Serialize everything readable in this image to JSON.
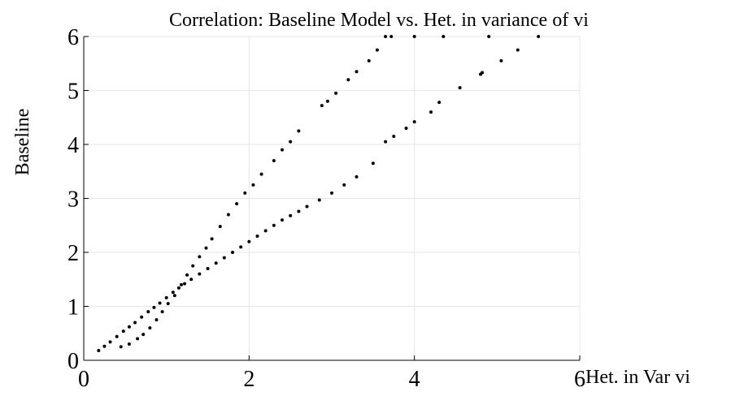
{
  "chart_data": {
    "type": "scatter",
    "title": "Correlation: Baseline Model vs. Het. in variance of vi",
    "x_label": "Het. in Var vi",
    "y_label": "Baseline",
    "xlim": [
      0,
      6
    ],
    "ylim": [
      0,
      6
    ],
    "xticks": [
      0,
      2,
      4,
      6
    ],
    "yticks": [
      0,
      1,
      2,
      3,
      4,
      5,
      6
    ],
    "grid": true,
    "color": "#000000",
    "x": [
      0.18,
      0.25,
      0.32,
      0.4,
      0.48,
      0.55,
      0.62,
      0.7,
      0.78,
      0.85,
      0.92,
      1.0,
      1.08,
      1.15,
      1.22,
      1.3,
      1.4,
      1.5,
      1.6,
      1.7,
      1.8,
      1.9,
      2.0,
      2.1,
      2.2,
      2.3,
      2.4,
      2.5,
      2.6,
      2.7,
      2.85,
      3.0,
      3.15,
      3.3,
      3.5,
      3.65,
      3.75,
      3.9,
      4.0,
      4.2,
      4.3,
      4.55,
      4.8,
      4.82,
      5.05,
      5.25,
      5.5,
      0.45,
      0.55,
      0.65,
      0.72,
      0.8,
      0.88,
      0.95,
      1.02,
      1.1,
      1.18,
      1.25,
      1.32,
      1.4,
      1.48,
      1.55,
      1.65,
      1.75,
      1.85,
      1.95,
      2.05,
      2.15,
      2.3,
      2.4,
      2.5,
      2.6,
      2.88,
      2.95,
      3.05,
      3.2,
      3.3,
      3.45,
      3.55,
      3.65,
      3.72,
      4.0,
      4.35,
      4.9
    ],
    "y": [
      0.18,
      0.26,
      0.34,
      0.44,
      0.54,
      0.62,
      0.7,
      0.8,
      0.9,
      0.98,
      1.06,
      1.16,
      1.26,
      1.34,
      1.42,
      1.5,
      1.6,
      1.7,
      1.8,
      1.9,
      2.0,
      2.1,
      2.2,
      2.3,
      2.4,
      2.5,
      2.6,
      2.68,
      2.76,
      2.85,
      2.97,
      3.1,
      3.25,
      3.4,
      3.65,
      4.05,
      4.15,
      4.3,
      4.42,
      4.6,
      4.78,
      5.05,
      5.3,
      5.33,
      5.55,
      5.75,
      6.0,
      0.25,
      0.3,
      0.4,
      0.48,
      0.6,
      0.75,
      0.9,
      1.05,
      1.2,
      1.4,
      1.58,
      1.75,
      1.92,
      2.08,
      2.25,
      2.48,
      2.7,
      2.9,
      3.1,
      3.25,
      3.45,
      3.7,
      3.9,
      4.05,
      4.25,
      4.72,
      4.8,
      4.95,
      5.2,
      5.35,
      5.55,
      5.75,
      6.0,
      6.0,
      6.0,
      6.0,
      6.0
    ]
  }
}
